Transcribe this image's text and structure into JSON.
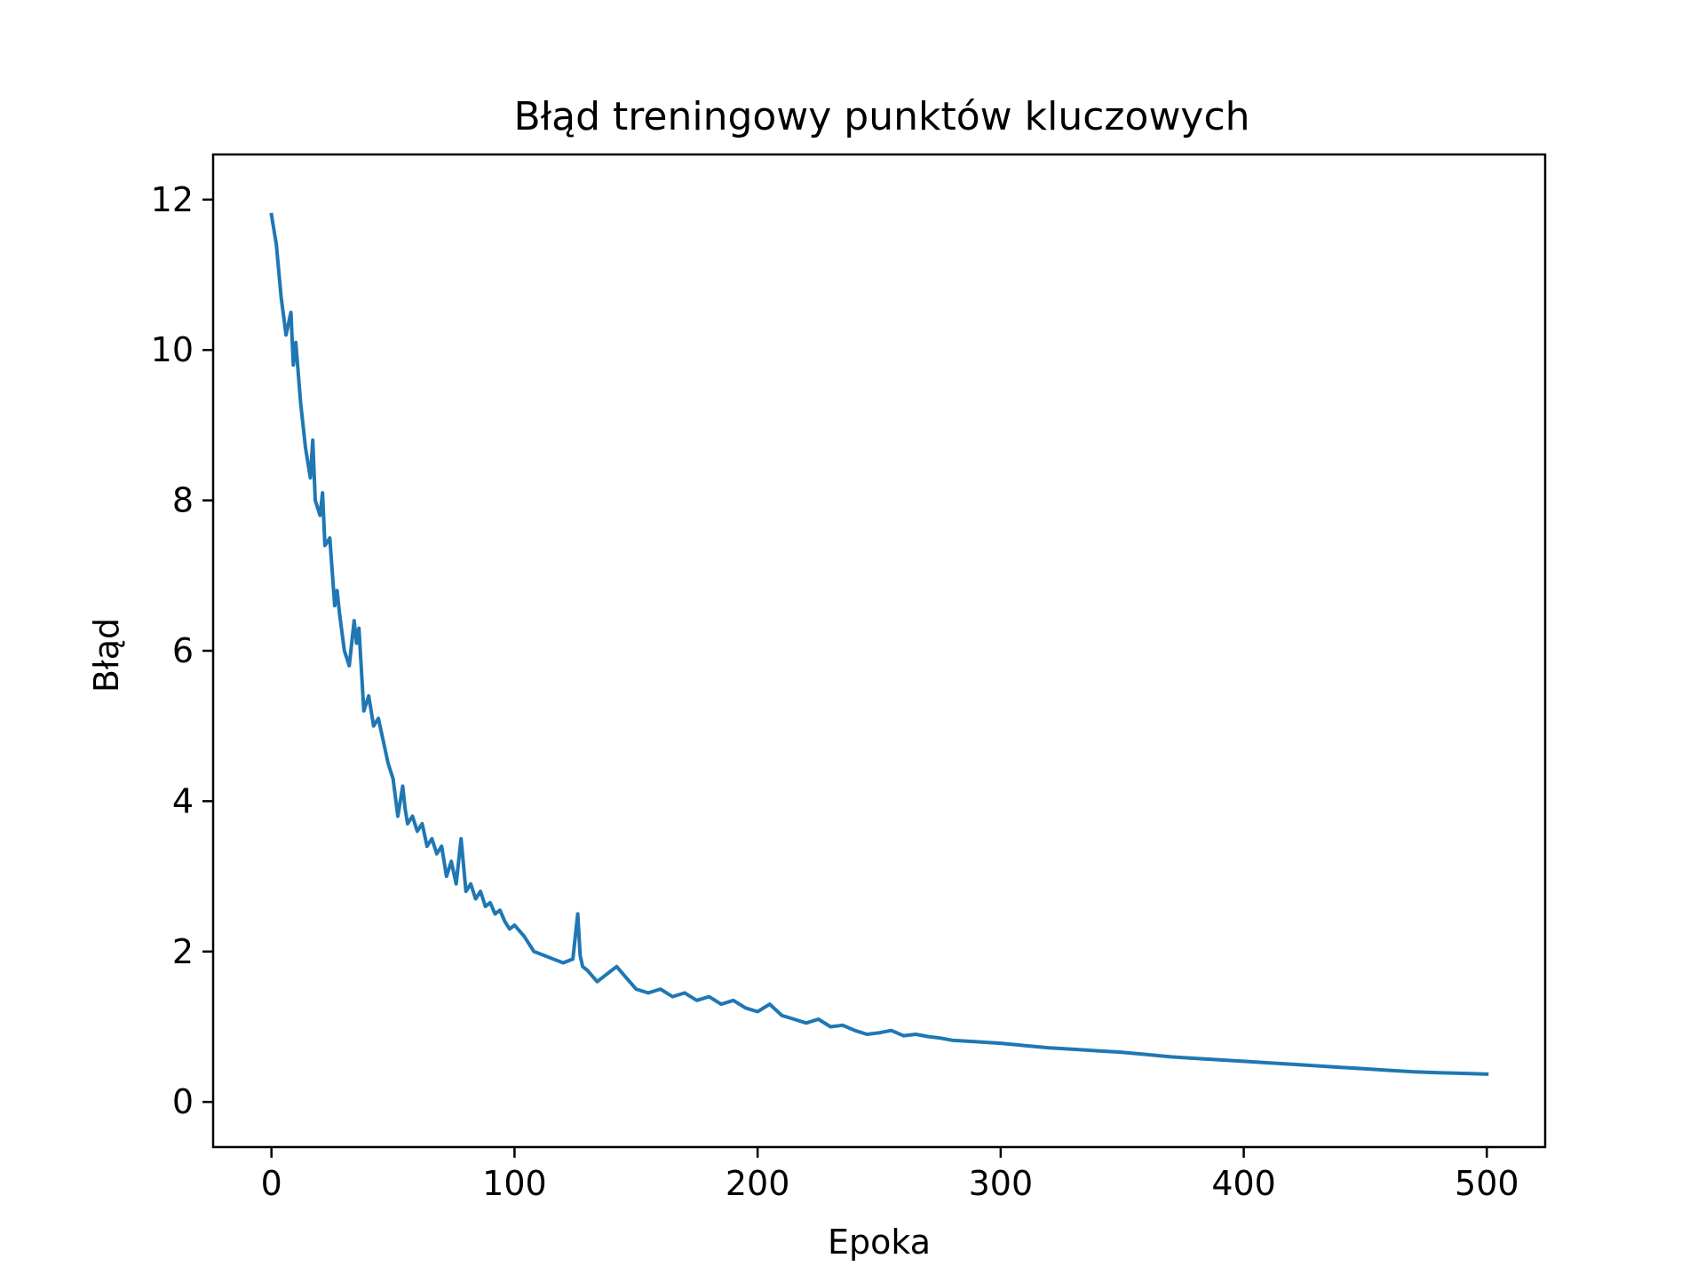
{
  "chart_data": {
    "type": "line",
    "title": "Błąd treningowy punktów kluczowych",
    "xlabel": "Epoka",
    "ylabel": "Błąd",
    "xlim": [
      -24,
      524
    ],
    "ylim": [
      -0.6,
      12.6
    ],
    "xticks": [
      0,
      100,
      200,
      300,
      400,
      500
    ],
    "yticks": [
      0,
      2,
      4,
      6,
      8,
      10,
      12
    ],
    "grid": false,
    "legend": "none",
    "series": [
      {
        "color": "#1f77b4",
        "x": [
          0,
          2,
          4,
          6,
          8,
          9,
          10,
          12,
          14,
          16,
          17,
          18,
          20,
          21,
          22,
          24,
          26,
          27,
          28,
          30,
          32,
          34,
          35,
          36,
          38,
          40,
          42,
          44,
          46,
          48,
          50,
          52,
          54,
          55,
          56,
          58,
          60,
          62,
          64,
          66,
          68,
          70,
          72,
          74,
          76,
          78,
          80,
          82,
          84,
          86,
          88,
          90,
          92,
          94,
          96,
          98,
          100,
          104,
          108,
          112,
          116,
          120,
          124,
          126,
          127,
          128,
          130,
          134,
          138,
          142,
          146,
          150,
          155,
          160,
          165,
          170,
          175,
          180,
          185,
          190,
          195,
          200,
          205,
          210,
          215,
          220,
          225,
          230,
          235,
          240,
          245,
          250,
          255,
          260,
          265,
          270,
          275,
          280,
          290,
          300,
          310,
          320,
          330,
          340,
          350,
          360,
          370,
          380,
          390,
          400,
          410,
          420,
          430,
          440,
          450,
          460,
          470,
          480,
          490,
          500
        ],
        "y": [
          11.8,
          11.4,
          10.7,
          10.2,
          10.5,
          9.8,
          10.1,
          9.3,
          8.7,
          8.3,
          8.8,
          8.0,
          7.8,
          8.1,
          7.4,
          7.5,
          6.6,
          6.8,
          6.5,
          6.0,
          5.8,
          6.4,
          6.1,
          6.3,
          5.2,
          5.4,
          5.0,
          5.1,
          4.8,
          4.5,
          4.3,
          3.8,
          4.2,
          3.9,
          3.7,
          3.8,
          3.6,
          3.7,
          3.4,
          3.5,
          3.3,
          3.4,
          3.0,
          3.2,
          2.9,
          3.5,
          2.8,
          2.9,
          2.7,
          2.8,
          2.6,
          2.65,
          2.5,
          2.55,
          2.4,
          2.3,
          2.35,
          2.2,
          2.0,
          1.95,
          1.9,
          1.85,
          1.9,
          2.5,
          1.95,
          1.8,
          1.75,
          1.6,
          1.7,
          1.8,
          1.65,
          1.5,
          1.45,
          1.5,
          1.4,
          1.45,
          1.35,
          1.4,
          1.3,
          1.35,
          1.25,
          1.2,
          1.3,
          1.15,
          1.1,
          1.05,
          1.1,
          1.0,
          1.02,
          0.95,
          0.9,
          0.92,
          0.95,
          0.88,
          0.9,
          0.87,
          0.85,
          0.82,
          0.8,
          0.78,
          0.75,
          0.72,
          0.7,
          0.68,
          0.66,
          0.63,
          0.6,
          0.58,
          0.56,
          0.54,
          0.52,
          0.5,
          0.48,
          0.46,
          0.44,
          0.42,
          0.4,
          0.39,
          0.38,
          0.37
        ]
      }
    ]
  }
}
